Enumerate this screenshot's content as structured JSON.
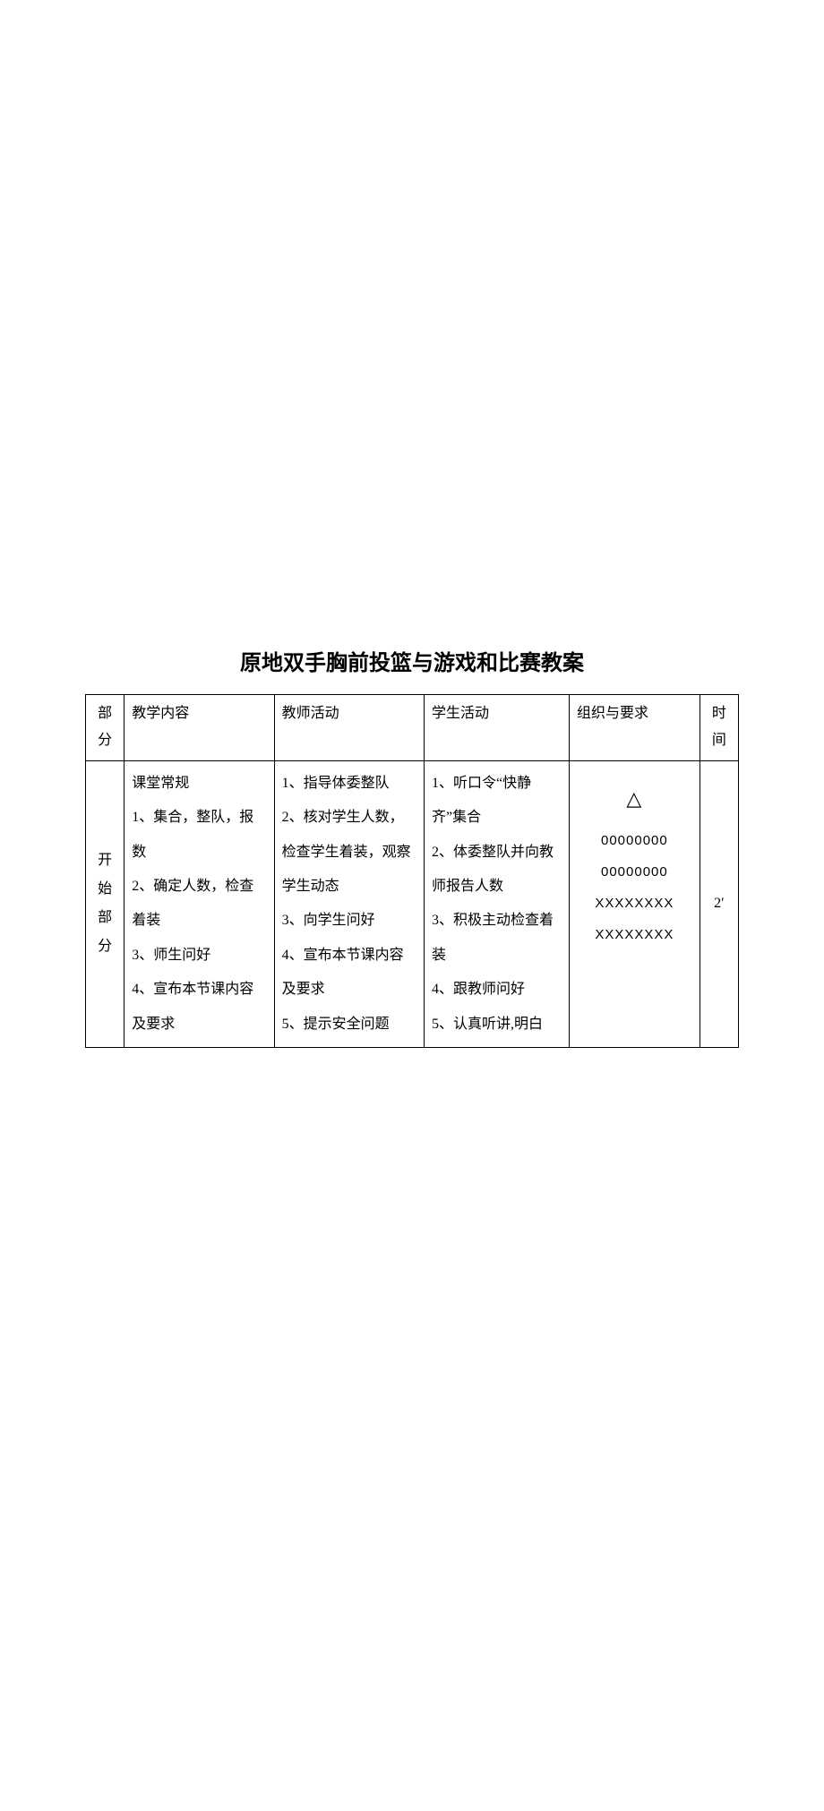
{
  "title": "原地双手胸前投篮与游戏和比赛教案",
  "headers": {
    "section": "部分",
    "content": "教学内容",
    "teacher": "教师活动",
    "student": "学生活动",
    "org": "组织与要求",
    "time": "时间"
  },
  "row1": {
    "section_chars": [
      "开",
      "始",
      "部",
      "分"
    ],
    "content_lines": [
      "课堂常规",
      "1、集合，整队，报数",
      "2、确定人数，检查着装",
      "3、师生问好",
      "4、宣布本节课内容及要求"
    ],
    "teacher_lines": [
      "1、指导体委整队",
      "2、核对学生人数，检查学生着装，观察学生动态",
      "3、向学生问好",
      "4、宣布本节课内容及要求",
      "5、提示安全问题"
    ],
    "student_lines": [
      "1、听口令“快静齐”集合",
      "2、体委整队并向教师报告人数",
      "3、积极主动检查着装",
      "4、跟教师问好",
      "5、认真听讲,明白"
    ],
    "org": {
      "triangle": "△",
      "rows": [
        "00000000",
        "00000000",
        "XXXXXXXX",
        "XXXXXXXX"
      ]
    },
    "time": "2′"
  }
}
